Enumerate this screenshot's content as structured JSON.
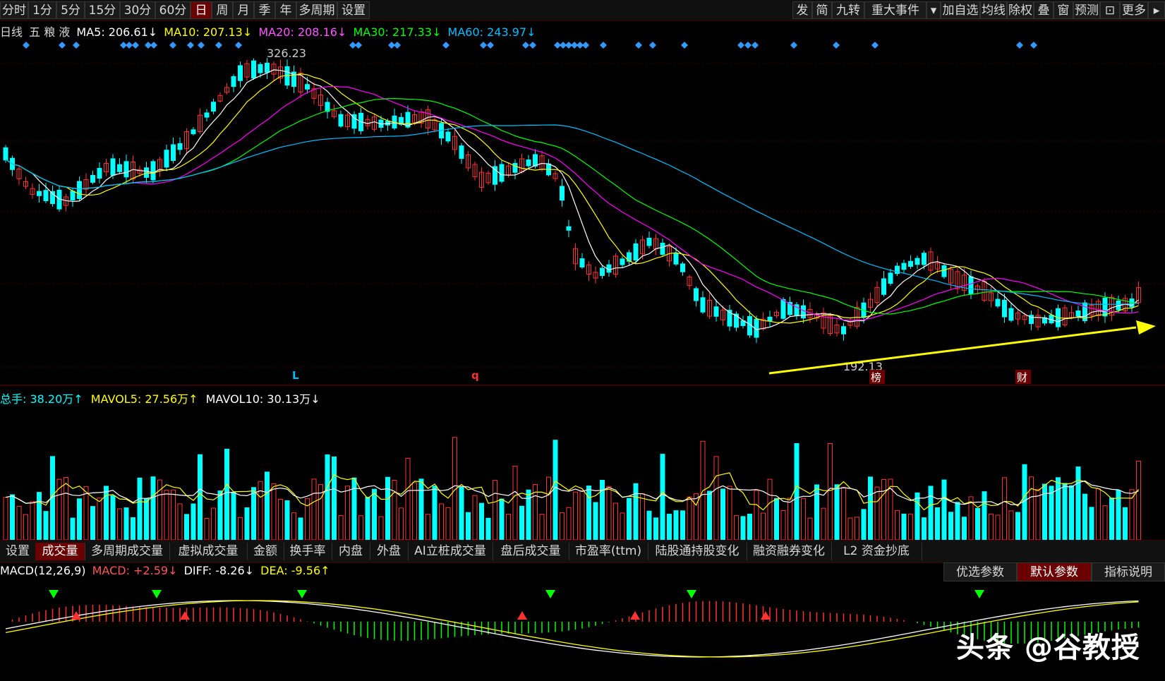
{
  "toolbar": {
    "period_tabs": [
      "分时",
      "1分",
      "5分",
      "15分",
      "30分",
      "60分",
      "日",
      "周",
      "月",
      "季",
      "年",
      "多周期",
      "设置"
    ],
    "active_period": "日",
    "right_buttons": [
      "发",
      "简",
      "九转",
      "重大事件",
      "▾",
      "加自选",
      "均线",
      "除权",
      "叠",
      "窗",
      "预测",
      "⊡",
      "更多",
      "▸"
    ]
  },
  "kline_info": {
    "label": "日线",
    "stock_name": "五 粮 液",
    "ma5": "MA5: 206.61↓",
    "ma10": "MA10: 207.13↓",
    "ma20": "MA20: 208.16↓",
    "ma30": "MA30: 217.33↓",
    "ma60": "MA60: 243.97↓",
    "high_label": "326.23",
    "low_label": "192.13",
    "markers": [
      "L",
      "q",
      "榜",
      "财"
    ]
  },
  "volume_info": {
    "total": "总手: 38.20万↑",
    "mavol5": "MAVOL5: 27.56万↑",
    "mavol10": "MAVOL10: 30.13万↓"
  },
  "indicator_tabs": [
    "设置",
    "成交量",
    "多周期成交量",
    "虚拟成交量",
    "金额",
    "换手率",
    "内盘",
    "外盘",
    "AI立桩成交量",
    "盘后成交量",
    "市盈率(ttm)",
    "陆股通持股变化",
    "融资融券变化",
    "L2 资金抄底"
  ],
  "active_indicator": "成交量",
  "macd_info": {
    "name": "MACD(12,26,9)",
    "macd": "MACD: +2.59↓",
    "diff": "DIFF: -8.26↓",
    "dea": "DEA: -9.56↑"
  },
  "param_buttons": [
    "优选参数",
    "默认参数",
    "指标说明"
  ],
  "active_param": "默认参数",
  "watermark": "头条 @谷教授",
  "colors": {
    "up": "#ff3232",
    "down": "#00ffff",
    "ma5": "#ffffff",
    "ma10": "#ffff00",
    "ma20": "#ff00ff",
    "ma30": "#00ff00",
    "ma60": "#00bfff",
    "trend_arrow": "#ffff00"
  },
  "chart_data": {
    "type": "candlestick",
    "title": "五粮液 日线",
    "y_high": 326.23,
    "y_low": 192.13,
    "ma_values": {
      "MA5": 206.61,
      "MA10": 207.13,
      "MA20": 208.16,
      "MA30": 217.33,
      "MA60": 243.97
    },
    "volume": {
      "total_wan": 38.2,
      "mavol5_wan": 27.56,
      "mavol10_wan": 30.13
    },
    "macd": {
      "params": [
        12,
        26,
        9
      ],
      "macd": 2.59,
      "diff": -8.26,
      "dea": -9.56
    }
  }
}
